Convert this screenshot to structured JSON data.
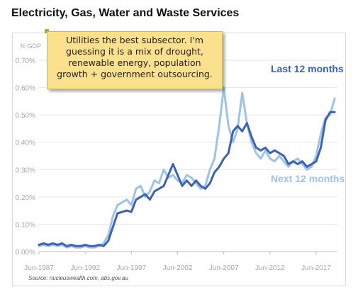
{
  "title": "Electricity, Gas, Water and Waste Services",
  "annotation": "Utilities the best subsector. I'm guessing it is a mix of drought, renewable energy, population growth + government outsourcing.",
  "source": "Source: nucleuswealth.com, abs.gov.au",
  "chart_data": {
    "type": "line",
    "title": "Electricity, Gas, Water and Waste Services",
    "ylabel": "% GDP",
    "xlabel": "",
    "ylim": [
      0,
      0.7
    ],
    "xlim": [
      1987.5,
      2019.8
    ],
    "yticks": [
      0,
      0.1,
      0.2,
      0.3,
      0.4,
      0.5,
      0.6,
      0.7
    ],
    "ytick_labels": [
      "0.00%",
      "0.10%",
      "0.20%",
      "0.30%",
      "0.40%",
      "0.50%",
      "0.60%",
      "0.70%"
    ],
    "xticks": [
      1987.5,
      1992.5,
      1997.5,
      2002.5,
      2007.5,
      2012.5,
      2017.5
    ],
    "xtick_labels": [
      "Jun-1987",
      "Jun-1992",
      "Jun-1997",
      "Jun-2002",
      "Jun-2007",
      "Jun-2012",
      "Jun-2017"
    ],
    "grid": true,
    "legend": "inline labels",
    "series": [
      {
        "name": "Last 12 months",
        "color": "#3b62b4",
        "x": [
          1987.5,
          1988.0,
          1988.5,
          1989.0,
          1989.5,
          1990.0,
          1990.5,
          1991.0,
          1991.5,
          1992.0,
          1992.5,
          1993.0,
          1993.5,
          1994.0,
          1994.5,
          1995.0,
          1995.5,
          1996.0,
          1996.5,
          1997.0,
          1997.5,
          1998.0,
          1998.5,
          1999.0,
          1999.5,
          2000.0,
          2000.5,
          2001.0,
          2001.5,
          2002.0,
          2002.5,
          2003.0,
          2003.5,
          2004.0,
          2004.5,
          2005.0,
          2005.5,
          2006.0,
          2006.5,
          2007.0,
          2007.5,
          2008.0,
          2008.5,
          2009.0,
          2009.5,
          2010.0,
          2010.5,
          2011.0,
          2011.5,
          2012.0,
          2012.5,
          2013.0,
          2013.5,
          2014.0,
          2014.5,
          2015.0,
          2015.5,
          2016.0,
          2016.5,
          2017.0,
          2017.5,
          2018.0,
          2018.5,
          2019.0,
          2019.5
        ],
        "y": [
          0.025,
          0.03,
          0.025,
          0.03,
          0.025,
          0.03,
          0.02,
          0.025,
          0.02,
          0.02,
          0.025,
          0.02,
          0.02,
          0.025,
          0.02,
          0.04,
          0.09,
          0.14,
          0.145,
          0.15,
          0.145,
          0.19,
          0.2,
          0.21,
          0.19,
          0.22,
          0.23,
          0.24,
          0.28,
          0.32,
          0.28,
          0.24,
          0.26,
          0.24,
          0.26,
          0.24,
          0.23,
          0.25,
          0.29,
          0.31,
          0.34,
          0.36,
          0.44,
          0.46,
          0.44,
          0.47,
          0.42,
          0.38,
          0.37,
          0.38,
          0.36,
          0.37,
          0.36,
          0.35,
          0.32,
          0.33,
          0.32,
          0.33,
          0.31,
          0.32,
          0.33,
          0.38,
          0.48,
          0.51,
          0.51
        ]
      },
      {
        "name": "Next 12 months",
        "color": "#9dc3e6",
        "x": [
          1987.5,
          1988.0,
          1988.5,
          1989.0,
          1989.5,
          1990.0,
          1990.5,
          1991.0,
          1991.5,
          1992.0,
          1992.5,
          1993.0,
          1993.5,
          1994.0,
          1994.5,
          1995.0,
          1995.5,
          1996.0,
          1996.5,
          1997.0,
          1997.5,
          1998.0,
          1998.5,
          1999.0,
          1999.5,
          2000.0,
          2000.5,
          2001.0,
          2001.5,
          2002.0,
          2002.5,
          2003.0,
          2003.5,
          2004.0,
          2004.5,
          2005.0,
          2005.5,
          2006.0,
          2006.5,
          2007.0,
          2007.5,
          2008.0,
          2008.5,
          2009.0,
          2009.5,
          2010.0,
          2010.5,
          2011.0,
          2011.5,
          2012.0,
          2012.5,
          2013.0,
          2013.5,
          2014.0,
          2014.5,
          2015.0,
          2015.5,
          2016.0,
          2016.5,
          2017.0,
          2017.5,
          2018.0,
          2018.5,
          2019.0,
          2019.5
        ],
        "y": [
          0.02,
          0.025,
          0.02,
          0.025,
          0.02,
          0.025,
          0.015,
          0.02,
          0.015,
          0.015,
          0.02,
          0.015,
          0.015,
          0.02,
          0.03,
          0.06,
          0.13,
          0.17,
          0.18,
          0.19,
          0.17,
          0.23,
          0.24,
          0.2,
          0.22,
          0.26,
          0.25,
          0.3,
          0.27,
          0.28,
          0.26,
          0.25,
          0.28,
          0.27,
          0.25,
          0.23,
          0.24,
          0.3,
          0.34,
          0.46,
          0.6,
          0.46,
          0.4,
          0.45,
          0.58,
          0.47,
          0.4,
          0.36,
          0.34,
          0.37,
          0.34,
          0.33,
          0.35,
          0.33,
          0.31,
          0.33,
          0.34,
          0.32,
          0.3,
          0.31,
          0.35,
          0.43,
          0.49,
          0.5,
          0.56
        ]
      }
    ]
  }
}
